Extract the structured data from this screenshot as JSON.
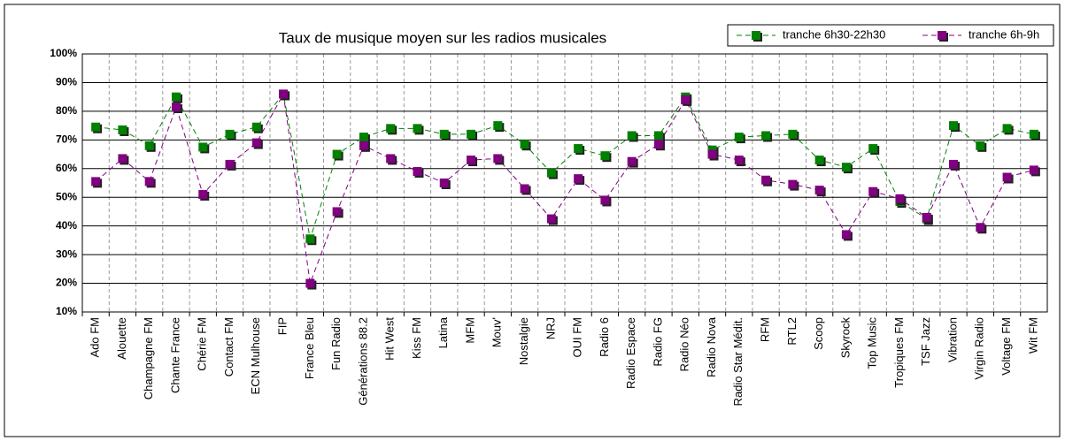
{
  "chart_data": {
    "type": "line",
    "title": "Taux de musique moyen sur les radios musicales",
    "categories": [
      "Ado FM",
      "Alouette",
      "Champagne FM",
      "Chante France",
      "Chérie FM",
      "Contact FM",
      "ECN Mulhouse",
      "FIP",
      "France Bleu",
      "Fun Radio",
      "Générations 88.2",
      "Hit West",
      "Kiss FM",
      "Latina",
      "MFM",
      "Mouv'",
      "Nostalgie",
      "NRJ",
      "OUI FM",
      "Radio 6",
      "Radio Espace",
      "Radio FG",
      "Radio Néo",
      "Radio Nova",
      "Radio Star Médit.",
      "RFM",
      "RTL2",
      "Scoop",
      "Skyrock",
      "Top Music",
      "Tropiques FM",
      "TSF Jazz",
      "Vibration",
      "Virgin Radio",
      "Voltage FM",
      "Wit FM"
    ],
    "series": [
      {
        "name": "tranche 6h30-22h30",
        "color": "#008000",
        "values": [
          74.5,
          73.5,
          68,
          85,
          67.5,
          72,
          74.5,
          86,
          35.5,
          65,
          71,
          74,
          74,
          72,
          72,
          75,
          68.5,
          58.5,
          67,
          64.5,
          71.5,
          71.5,
          85,
          66.5,
          71,
          71.5,
          72,
          63,
          60.5,
          67,
          48.5,
          42.5,
          75,
          68,
          74,
          72
        ]
      },
      {
        "name": "tranche 6h-9h",
        "color": "#800080",
        "values": [
          55.5,
          63.5,
          55.5,
          81.5,
          51,
          61.5,
          69,
          86,
          20,
          45,
          68,
          63.5,
          59,
          55,
          63,
          63.5,
          53,
          42.5,
          56.5,
          49,
          62.5,
          68.5,
          84,
          65,
          63,
          56,
          54.5,
          52.5,
          37,
          52,
          49.5,
          43,
          61.5,
          39.5,
          57,
          59.5
        ]
      }
    ],
    "ylim": [
      10,
      100
    ],
    "yticks": [
      {
        "value": 10,
        "label": "10%"
      },
      {
        "value": 20,
        "label": "20%"
      },
      {
        "value": 30,
        "label": "30%"
      },
      {
        "value": 40,
        "label": "40%"
      },
      {
        "value": 50,
        "label": "50%"
      },
      {
        "value": 60,
        "label": "60%"
      },
      {
        "value": 70,
        "label": "70%"
      },
      {
        "value": 80,
        "label": "80%"
      },
      {
        "value": 90,
        "label": "90%"
      },
      {
        "value": 100,
        "label": "100%"
      }
    ],
    "grid": true,
    "legend": "top-right"
  }
}
